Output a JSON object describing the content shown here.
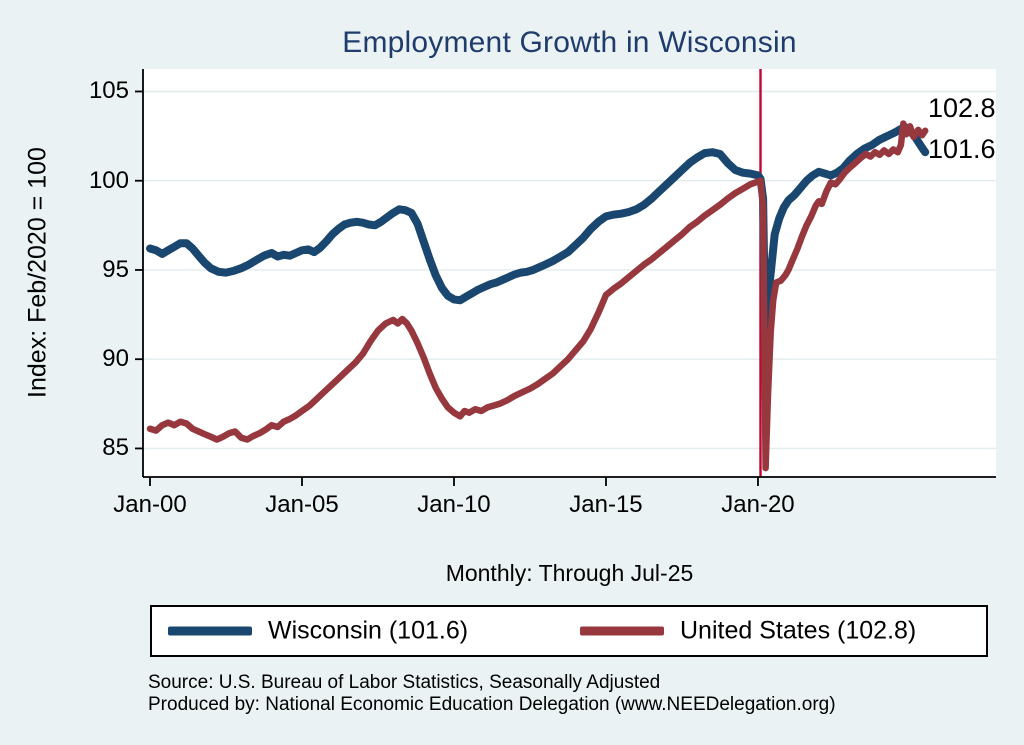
{
  "chart": {
    "title": "Employment Growth in Wisconsin",
    "y_axis_title": "Index: Feb/2020 = 100",
    "x_axis_subtitle": "Monthly: Through Jul-25",
    "end_labels": {
      "us": "102.8",
      "wisconsin": "101.6"
    },
    "legend": [
      {
        "label": "Wisconsin (101.6)",
        "color": "#1a476f"
      },
      {
        "label": "United States (102.8)",
        "color": "#97383f"
      }
    ],
    "notes": [
      "Source: U.S. Bureau of Labor Statistics, Seasonally Adjusted",
      "Produced by: National Economic Education Delegation (www.NEEDelegation.org)"
    ],
    "colors": {
      "page_background": "#eaf2f3",
      "plot_background": "#ffffff",
      "gridline": "#e2ecee",
      "axis": "#000000",
      "title": "#1f3c6d",
      "wisconsin_line": "#1a476f",
      "us_line": "#97383f",
      "reference_line": "#c10534"
    }
  },
  "chart_data": {
    "type": "line",
    "title": "Employment Growth in Wisconsin",
    "xlabel": "Monthly: Through Jul-25",
    "ylabel": "Index: Feb/2020 = 100",
    "grid": true,
    "legend_position": "bottom",
    "xlim": [
      1999.77,
      2027.83
    ],
    "ylim": [
      83.4,
      106.26
    ],
    "y_ticks": [
      85,
      90,
      95,
      100,
      105
    ],
    "x_ticks": [
      {
        "value": 2000,
        "label": "Jan-00"
      },
      {
        "value": 2005,
        "label": "Jan-05"
      },
      {
        "value": 2010,
        "label": "Jan-10"
      },
      {
        "value": 2015,
        "label": "Jan-15"
      },
      {
        "value": 2020,
        "label": "Jan-20"
      }
    ],
    "reference_line_x": 2020.083,
    "series": [
      {
        "name": "Wisconsin (101.6)",
        "color": "#1a476f",
        "width": 8,
        "final_value": 101.6,
        "points": [
          [
            2000.0,
            96.2
          ],
          [
            2000.2,
            96.1
          ],
          [
            2000.4,
            95.9
          ],
          [
            2000.6,
            96.1
          ],
          [
            2000.8,
            96.3
          ],
          [
            2001.0,
            96.5
          ],
          [
            2001.2,
            96.5
          ],
          [
            2001.4,
            96.2
          ],
          [
            2001.6,
            95.8
          ],
          [
            2001.8,
            95.4
          ],
          [
            2002.0,
            95.1
          ],
          [
            2002.25,
            94.9
          ],
          [
            2002.5,
            94.85
          ],
          [
            2002.75,
            94.95
          ],
          [
            2003.0,
            95.1
          ],
          [
            2003.25,
            95.3
          ],
          [
            2003.5,
            95.55
          ],
          [
            2003.75,
            95.8
          ],
          [
            2004.0,
            95.95
          ],
          [
            2004.2,
            95.75
          ],
          [
            2004.4,
            95.85
          ],
          [
            2004.6,
            95.8
          ],
          [
            2004.8,
            95.95
          ],
          [
            2005.0,
            96.1
          ],
          [
            2005.2,
            96.15
          ],
          [
            2005.4,
            96.0
          ],
          [
            2005.6,
            96.25
          ],
          [
            2005.8,
            96.6
          ],
          [
            2006.0,
            97.0
          ],
          [
            2006.2,
            97.3
          ],
          [
            2006.4,
            97.55
          ],
          [
            2006.6,
            97.65
          ],
          [
            2006.8,
            97.7
          ],
          [
            2007.0,
            97.65
          ],
          [
            2007.2,
            97.55
          ],
          [
            2007.4,
            97.5
          ],
          [
            2007.6,
            97.7
          ],
          [
            2007.8,
            97.95
          ],
          [
            2008.0,
            98.2
          ],
          [
            2008.2,
            98.4
          ],
          [
            2008.4,
            98.35
          ],
          [
            2008.6,
            98.2
          ],
          [
            2008.8,
            97.6
          ],
          [
            2009.0,
            96.6
          ],
          [
            2009.2,
            95.6
          ],
          [
            2009.4,
            94.7
          ],
          [
            2009.6,
            94.0
          ],
          [
            2009.8,
            93.55
          ],
          [
            2010.0,
            93.35
          ],
          [
            2010.2,
            93.3
          ],
          [
            2010.4,
            93.5
          ],
          [
            2010.6,
            93.7
          ],
          [
            2010.8,
            93.9
          ],
          [
            2011.0,
            94.05
          ],
          [
            2011.2,
            94.2
          ],
          [
            2011.4,
            94.3
          ],
          [
            2011.6,
            94.45
          ],
          [
            2011.8,
            94.6
          ],
          [
            2012.0,
            94.75
          ],
          [
            2012.2,
            94.85
          ],
          [
            2012.4,
            94.9
          ],
          [
            2012.6,
            95.0
          ],
          [
            2012.8,
            95.15
          ],
          [
            2013.0,
            95.3
          ],
          [
            2013.25,
            95.5
          ],
          [
            2013.5,
            95.75
          ],
          [
            2013.75,
            96.0
          ],
          [
            2014.0,
            96.4
          ],
          [
            2014.25,
            96.8
          ],
          [
            2014.5,
            97.3
          ],
          [
            2014.75,
            97.7
          ],
          [
            2015.0,
            98.0
          ],
          [
            2015.25,
            98.1
          ],
          [
            2015.5,
            98.15
          ],
          [
            2015.75,
            98.25
          ],
          [
            2016.0,
            98.4
          ],
          [
            2016.25,
            98.65
          ],
          [
            2016.5,
            99.0
          ],
          [
            2016.75,
            99.4
          ],
          [
            2017.0,
            99.8
          ],
          [
            2017.25,
            100.2
          ],
          [
            2017.5,
            100.6
          ],
          [
            2017.75,
            101.0
          ],
          [
            2018.0,
            101.3
          ],
          [
            2018.25,
            101.55
          ],
          [
            2018.5,
            101.6
          ],
          [
            2018.75,
            101.5
          ],
          [
            2019.0,
            101.0
          ],
          [
            2019.25,
            100.6
          ],
          [
            2019.5,
            100.45
          ],
          [
            2019.75,
            100.4
          ],
          [
            2020.0,
            100.3
          ],
          [
            2020.083,
            100.1
          ],
          [
            2020.17,
            99.0
          ],
          [
            2020.25,
            89.9
          ],
          [
            2020.4,
            94.5
          ],
          [
            2020.55,
            97.0
          ],
          [
            2020.7,
            97.9
          ],
          [
            2020.85,
            98.5
          ],
          [
            2021.0,
            98.9
          ],
          [
            2021.2,
            99.2
          ],
          [
            2021.4,
            99.6
          ],
          [
            2021.6,
            100.0
          ],
          [
            2021.8,
            100.3
          ],
          [
            2022.0,
            100.5
          ],
          [
            2022.2,
            100.4
          ],
          [
            2022.4,
            100.3
          ],
          [
            2022.6,
            100.45
          ],
          [
            2022.8,
            100.7
          ],
          [
            2023.0,
            101.1
          ],
          [
            2023.25,
            101.5
          ],
          [
            2023.5,
            101.8
          ],
          [
            2023.75,
            102.0
          ],
          [
            2024.0,
            102.3
          ],
          [
            2024.25,
            102.5
          ],
          [
            2024.5,
            102.7
          ],
          [
            2024.7,
            102.9
          ],
          [
            2024.85,
            103.0
          ],
          [
            2025.0,
            102.8
          ],
          [
            2025.15,
            102.5
          ],
          [
            2025.3,
            102.1
          ],
          [
            2025.42,
            101.8
          ],
          [
            2025.5,
            101.6
          ]
        ]
      },
      {
        "name": "United States (102.8)",
        "color": "#97383f",
        "width": 6.5,
        "final_value": 102.8,
        "points": [
          [
            2000.0,
            86.1
          ],
          [
            2000.2,
            86.0
          ],
          [
            2000.4,
            86.3
          ],
          [
            2000.6,
            86.45
          ],
          [
            2000.8,
            86.3
          ],
          [
            2001.0,
            86.5
          ],
          [
            2001.2,
            86.4
          ],
          [
            2001.4,
            86.1
          ],
          [
            2001.6,
            85.95
          ],
          [
            2001.8,
            85.8
          ],
          [
            2002.0,
            85.65
          ],
          [
            2002.2,
            85.5
          ],
          [
            2002.4,
            85.65
          ],
          [
            2002.6,
            85.85
          ],
          [
            2002.8,
            85.95
          ],
          [
            2003.0,
            85.6
          ],
          [
            2003.2,
            85.5
          ],
          [
            2003.4,
            85.7
          ],
          [
            2003.6,
            85.85
          ],
          [
            2003.8,
            86.05
          ],
          [
            2004.0,
            86.3
          ],
          [
            2004.2,
            86.2
          ],
          [
            2004.4,
            86.5
          ],
          [
            2004.6,
            86.65
          ],
          [
            2004.8,
            86.85
          ],
          [
            2005.0,
            87.1
          ],
          [
            2005.25,
            87.4
          ],
          [
            2005.5,
            87.8
          ],
          [
            2005.75,
            88.2
          ],
          [
            2006.0,
            88.6
          ],
          [
            2006.25,
            89.0
          ],
          [
            2006.5,
            89.4
          ],
          [
            2006.75,
            89.8
          ],
          [
            2007.0,
            90.3
          ],
          [
            2007.25,
            91.0
          ],
          [
            2007.5,
            91.6
          ],
          [
            2007.75,
            92.0
          ],
          [
            2008.0,
            92.2
          ],
          [
            2008.15,
            92.0
          ],
          [
            2008.3,
            92.25
          ],
          [
            2008.45,
            92.0
          ],
          [
            2008.6,
            91.6
          ],
          [
            2008.8,
            90.9
          ],
          [
            2009.0,
            90.1
          ],
          [
            2009.2,
            89.2
          ],
          [
            2009.4,
            88.4
          ],
          [
            2009.6,
            87.8
          ],
          [
            2009.8,
            87.3
          ],
          [
            2010.0,
            87.0
          ],
          [
            2010.2,
            86.8
          ],
          [
            2010.35,
            87.1
          ],
          [
            2010.5,
            87.0
          ],
          [
            2010.7,
            87.2
          ],
          [
            2010.9,
            87.1
          ],
          [
            2011.1,
            87.3
          ],
          [
            2011.3,
            87.4
          ],
          [
            2011.5,
            87.5
          ],
          [
            2011.75,
            87.7
          ],
          [
            2012.0,
            87.95
          ],
          [
            2012.25,
            88.15
          ],
          [
            2012.5,
            88.35
          ],
          [
            2012.75,
            88.6
          ],
          [
            2013.0,
            88.9
          ],
          [
            2013.25,
            89.2
          ],
          [
            2013.5,
            89.6
          ],
          [
            2013.75,
            90.0
          ],
          [
            2014.0,
            90.5
          ],
          [
            2014.25,
            91.0
          ],
          [
            2014.5,
            91.7
          ],
          [
            2014.75,
            92.6
          ],
          [
            2015.0,
            93.6
          ],
          [
            2015.25,
            93.95
          ],
          [
            2015.5,
            94.25
          ],
          [
            2015.75,
            94.6
          ],
          [
            2016.0,
            94.95
          ],
          [
            2016.25,
            95.3
          ],
          [
            2016.5,
            95.6
          ],
          [
            2016.75,
            95.95
          ],
          [
            2017.0,
            96.3
          ],
          [
            2017.25,
            96.65
          ],
          [
            2017.5,
            97.0
          ],
          [
            2017.75,
            97.4
          ],
          [
            2018.0,
            97.7
          ],
          [
            2018.25,
            98.05
          ],
          [
            2018.5,
            98.35
          ],
          [
            2018.75,
            98.65
          ],
          [
            2019.0,
            99.0
          ],
          [
            2019.25,
            99.3
          ],
          [
            2019.5,
            99.55
          ],
          [
            2019.75,
            99.8
          ],
          [
            2020.0,
            99.95
          ],
          [
            2020.083,
            100.0
          ],
          [
            2020.17,
            98.5
          ],
          [
            2020.25,
            83.9
          ],
          [
            2020.33,
            88.0
          ],
          [
            2020.42,
            91.5
          ],
          [
            2020.5,
            93.3
          ],
          [
            2020.6,
            94.3
          ],
          [
            2020.75,
            94.4
          ],
          [
            2020.9,
            94.7
          ],
          [
            2021.0,
            95.0
          ],
          [
            2021.15,
            95.6
          ],
          [
            2021.3,
            96.2
          ],
          [
            2021.45,
            96.9
          ],
          [
            2021.6,
            97.5
          ],
          [
            2021.75,
            98.0
          ],
          [
            2021.9,
            98.6
          ],
          [
            2022.0,
            98.85
          ],
          [
            2022.1,
            98.7
          ],
          [
            2022.25,
            99.4
          ],
          [
            2022.4,
            99.9
          ],
          [
            2022.55,
            99.8
          ],
          [
            2022.7,
            100.1
          ],
          [
            2022.85,
            100.45
          ],
          [
            2023.0,
            100.7
          ],
          [
            2023.2,
            101.0
          ],
          [
            2023.4,
            101.3
          ],
          [
            2023.55,
            101.5
          ],
          [
            2023.7,
            101.35
          ],
          [
            2023.85,
            101.6
          ],
          [
            2024.0,
            101.45
          ],
          [
            2024.15,
            101.7
          ],
          [
            2024.3,
            101.5
          ],
          [
            2024.45,
            101.75
          ],
          [
            2024.6,
            101.6
          ],
          [
            2024.7,
            102.0
          ],
          [
            2024.78,
            103.2
          ],
          [
            2024.88,
            102.6
          ],
          [
            2025.0,
            103.05
          ],
          [
            2025.12,
            102.45
          ],
          [
            2025.27,
            102.85
          ],
          [
            2025.4,
            102.55
          ],
          [
            2025.5,
            102.8
          ]
        ]
      }
    ]
  }
}
